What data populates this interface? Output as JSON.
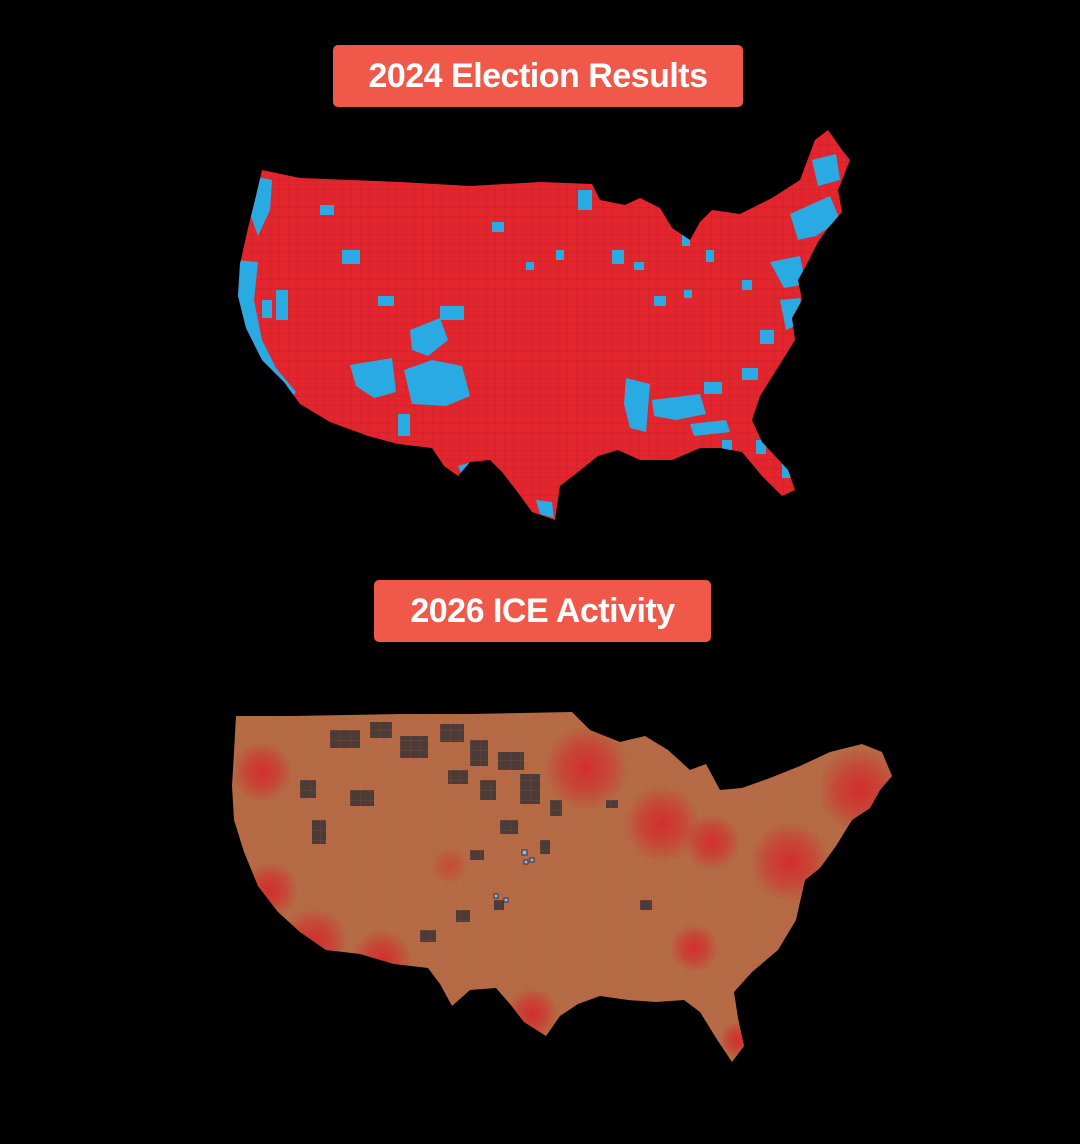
{
  "panels": [
    {
      "title": "2024 Election Results",
      "badge_color": "#f0584a"
    },
    {
      "title": "2026 ICE Activity",
      "badge_color": "#f0584a"
    }
  ],
  "colors": {
    "background": "#000000",
    "republican_red": "#e3262e",
    "democrat_blue": "#2aaae2",
    "heatmap_base": "#b36a45",
    "heatmap_hotspot": "#d42b2b",
    "heatmap_low": "#3a3436"
  }
}
